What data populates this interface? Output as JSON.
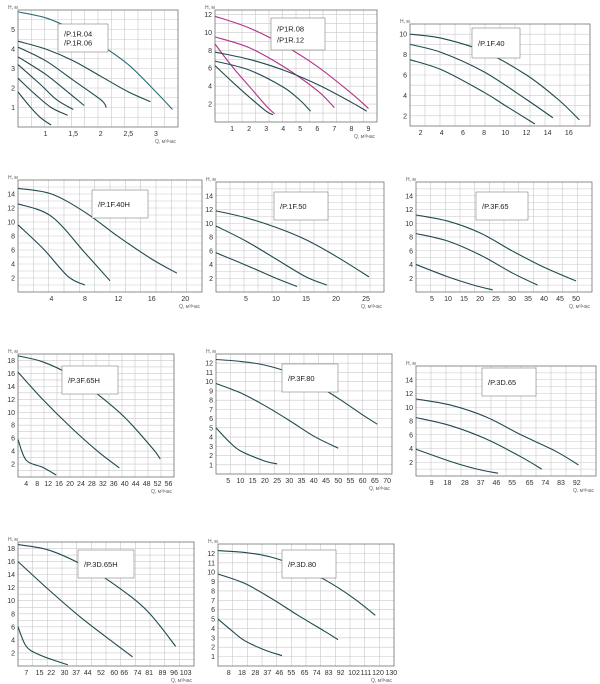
{
  "colors": {
    "curve": "#1f4a4f",
    "magenta": "#b5308a",
    "grid": "#c9c9c9",
    "axis": "#707070"
  },
  "chart_data": [
    {
      "type": "line",
      "ylabel": "H, м",
      "xlabel": "Q, м³/час",
      "xticks": [
        "1",
        "1,5",
        "2",
        "2,5",
        "3"
      ],
      "xtick_values": [
        1,
        1.5,
        2,
        2.5,
        3
      ],
      "xlim": [
        0.5,
        3.4
      ],
      "yticks": [
        "1",
        "2",
        "3",
        "4",
        "5"
      ],
      "ylim": [
        0,
        6
      ],
      "legend": [
        "/P.1R.04",
        "/P.1R.06"
      ],
      "legend_colors": [
        "#202020",
        "#2d6f7a"
      ],
      "series": [
        {
          "x": [
            0.5,
            1.0,
            1.5,
            2.0,
            2.5,
            3.0,
            3.3
          ],
          "y": [
            5.9,
            5.6,
            5.0,
            4.2,
            3.2,
            1.8,
            0.9
          ],
          "color": "#2d6f7a"
        },
        {
          "x": [
            0.5,
            1.0,
            1.5,
            2.0,
            2.5,
            2.9
          ],
          "y": [
            4.4,
            4.0,
            3.4,
            2.6,
            1.8,
            1.3
          ]
        },
        {
          "x": [
            0.5,
            1.0,
            1.5,
            2.0,
            2.1
          ],
          "y": [
            4.1,
            3.4,
            2.4,
            1.4,
            1.0
          ]
        },
        {
          "x": [
            0.5,
            1.0,
            1.4,
            1.7
          ],
          "y": [
            3.6,
            2.7,
            1.8,
            1.1
          ]
        },
        {
          "x": [
            0.5,
            0.9,
            1.2,
            1.5
          ],
          "y": [
            3.2,
            2.2,
            1.4,
            0.9
          ]
        },
        {
          "x": [
            0.5,
            0.8,
            1.1,
            1.4
          ],
          "y": [
            2.5,
            1.7,
            1.0,
            0.6
          ]
        },
        {
          "x": [
            0.5,
            0.7,
            0.9,
            1.1
          ],
          "y": [
            1.8,
            1.1,
            0.5,
            0.1
          ]
        }
      ]
    },
    {
      "type": "line",
      "ylabel": "H, м",
      "xlabel": "Q, м³/час",
      "xticks": [
        "1",
        "2",
        "3",
        "4",
        "5",
        "6",
        "7",
        "8",
        "9"
      ],
      "xtick_values": [
        1,
        2,
        3,
        4,
        5,
        6,
        7,
        8,
        9
      ],
      "xlim": [
        0,
        9.5
      ],
      "yticks": [
        "2",
        "4",
        "6",
        "8",
        "10",
        "12"
      ],
      "ylim": [
        0,
        12.5
      ],
      "legend": [
        "/P1R.08",
        "/P1R.12"
      ],
      "legend_colors": [
        "#3b2f80",
        "#b5308a"
      ],
      "series": [
        {
          "x": [
            0,
            2,
            4,
            6,
            8,
            9
          ],
          "y": [
            11.8,
            10.5,
            8.6,
            6.2,
            3.2,
            1.5
          ],
          "color": "#b5308a"
        },
        {
          "x": [
            0,
            2,
            4,
            6,
            7
          ],
          "y": [
            9.5,
            8.3,
            6.2,
            3.5,
            1.6
          ],
          "color": "#b5308a"
        },
        {
          "x": [
            0,
            1,
            2,
            3,
            3.5
          ],
          "y": [
            8.7,
            6.2,
            4.0,
            1.8,
            0.9
          ],
          "color": "#b5308a"
        },
        {
          "x": [
            0,
            2,
            4,
            6,
            8,
            8.9
          ],
          "y": [
            7.8,
            7.0,
            5.8,
            4.2,
            2.2,
            1.2
          ]
        },
        {
          "x": [
            0,
            2,
            4,
            5,
            5.6
          ],
          "y": [
            6.8,
            5.8,
            3.9,
            2.4,
            1.2
          ]
        },
        {
          "x": [
            0,
            1,
            2,
            3,
            3.4
          ],
          "y": [
            6.3,
            4.5,
            2.8,
            1.2,
            0.8
          ]
        }
      ]
    },
    {
      "type": "line",
      "ylabel": "H, м",
      "xlabel": "",
      "xticks": [
        "2",
        "4",
        "6",
        "8",
        "10",
        "12",
        "14",
        "16"
      ],
      "xtick_values": [
        2,
        4,
        6,
        8,
        10,
        12,
        14,
        16
      ],
      "xlim": [
        1,
        18
      ],
      "yticks": [
        "2",
        "4",
        "6",
        "8",
        "10"
      ],
      "ylim": [
        1,
        11
      ],
      "legend": [
        "/P.1F.40"
      ],
      "legend_colors": [
        "#202020"
      ],
      "series": [
        {
          "x": [
            1,
            4,
            8,
            12,
            15,
            17
          ],
          "y": [
            10,
            9.6,
            8.3,
            6.0,
            3.6,
            1.6
          ]
        },
        {
          "x": [
            1,
            4,
            8,
            12,
            14.5
          ],
          "y": [
            9,
            8.2,
            6.3,
            3.6,
            1.8
          ]
        },
        {
          "x": [
            1,
            4,
            8,
            10,
            12.8
          ],
          "y": [
            7.5,
            6.5,
            4.3,
            3.0,
            1.2
          ]
        }
      ]
    },
    {
      "type": "line",
      "ylabel": "H, м",
      "xlabel": "Q, м³/час",
      "xticks": [
        "4",
        "8",
        "12",
        "16",
        "20"
      ],
      "xtick_values": [
        4,
        8,
        12,
        16,
        20
      ],
      "xlim": [
        0,
        22
      ],
      "yticks": [
        "2",
        "4",
        "6",
        "8",
        "10",
        "12",
        "14"
      ],
      "ylim": [
        0,
        16
      ],
      "legend": [
        "/P.1F.40H"
      ],
      "legend_colors": [
        "#202020"
      ],
      "series": [
        {
          "x": [
            0,
            4,
            8,
            12,
            16,
            19
          ],
          "y": [
            14.8,
            14.0,
            11.4,
            7.9,
            4.7,
            2.7
          ]
        },
        {
          "x": [
            0,
            4,
            8,
            11
          ],
          "y": [
            12.6,
            10.8,
            5.6,
            1.6
          ]
        },
        {
          "x": [
            0,
            3,
            6,
            8
          ],
          "y": [
            9.6,
            6.2,
            2.2,
            1.0
          ]
        }
      ]
    },
    {
      "type": "line",
      "ylabel": "H, м",
      "xlabel": "Q, м³/час",
      "xticks": [
        "5",
        "10",
        "15",
        "20",
        "25"
      ],
      "xtick_values": [
        5,
        10,
        15,
        20,
        25
      ],
      "xlim": [
        0,
        28
      ],
      "yticks": [
        "2",
        "4",
        "6",
        "8",
        "10",
        "12",
        "14"
      ],
      "ylim": [
        0,
        16
      ],
      "legend": [
        "/P.1F.50"
      ],
      "legend_colors": [
        "#202020"
      ],
      "series": [
        {
          "x": [
            0,
            5,
            10,
            15,
            20,
            25.5
          ],
          "y": [
            11.8,
            10.8,
            9.4,
            7.6,
            5.2,
            2.2
          ]
        },
        {
          "x": [
            0,
            5,
            10,
            15,
            18.5
          ],
          "y": [
            9.6,
            7.4,
            4.8,
            2.2,
            1.0
          ]
        },
        {
          "x": [
            0,
            5,
            10,
            13.5
          ],
          "y": [
            5.7,
            3.9,
            2.0,
            0.8
          ]
        }
      ]
    },
    {
      "type": "line",
      "ylabel": "H, м",
      "xlabel": "Q, м³/час",
      "xticks": [
        "5",
        "10",
        "15",
        "20",
        "25",
        "30",
        "35",
        "40",
        "45",
        "50"
      ],
      "xtick_values": [
        5,
        10,
        15,
        20,
        25,
        30,
        35,
        40,
        45,
        50
      ],
      "xlim": [
        0,
        55
      ],
      "yticks": [
        "2",
        "4",
        "6",
        "8",
        "10",
        "12",
        "14"
      ],
      "ylim": [
        0,
        16
      ],
      "legend": [
        "/P.3F.65"
      ],
      "legend_colors": [
        "#202020"
      ],
      "series": [
        {
          "x": [
            0,
            10,
            20,
            30,
            40,
            50
          ],
          "y": [
            11.2,
            10.3,
            8.6,
            6.0,
            3.6,
            1.6
          ]
        },
        {
          "x": [
            0,
            10,
            20,
            30,
            38
          ],
          "y": [
            8.5,
            7.4,
            5.4,
            2.8,
            1.0
          ]
        },
        {
          "x": [
            0,
            10,
            18,
            24
          ],
          "y": [
            4.0,
            2.2,
            1.0,
            0.3
          ]
        }
      ]
    },
    {
      "type": "line",
      "ylabel": "H, м",
      "xlabel": "Q, м³/час",
      "xticks": [
        "4",
        "8",
        "12",
        "16",
        "20",
        "24",
        "28",
        "32",
        "36",
        "40",
        "44",
        "48",
        "52",
        "56"
      ],
      "xtick_values": [
        4,
        8,
        12,
        16,
        20,
        24,
        28,
        32,
        36,
        40,
        44,
        48,
        52,
        56
      ],
      "xlim": [
        1,
        58
      ],
      "yticks": [
        "2",
        "4",
        "6",
        "8",
        "10",
        "12",
        "14",
        "16",
        "18"
      ],
      "ylim": [
        0,
        19
      ],
      "legend": [
        "/P.3F.65H"
      ],
      "legend_colors": [
        "#202020"
      ],
      "series": [
        {
          "x": [
            1,
            10,
            20,
            30,
            40,
            50,
            53
          ],
          "y": [
            18.7,
            17.8,
            15.8,
            12.8,
            9.2,
            4.5,
            2.8
          ]
        },
        {
          "x": [
            1,
            10,
            20,
            30,
            38
          ],
          "y": [
            16.2,
            12.0,
            7.8,
            4.0,
            1.4
          ]
        },
        {
          "x": [
            1,
            4,
            10,
            15
          ],
          "y": [
            5.8,
            2.6,
            1.5,
            0.3
          ]
        }
      ]
    },
    {
      "type": "line",
      "ylabel": "H, м",
      "xlabel": "Q, м³/час",
      "xticks": [
        "5",
        "10",
        "15",
        "20",
        "25",
        "30",
        "35",
        "40",
        "45",
        "50",
        "55",
        "60",
        "65",
        "70"
      ],
      "xtick_values": [
        5,
        10,
        15,
        20,
        25,
        30,
        35,
        40,
        45,
        50,
        55,
        60,
        65,
        70
      ],
      "xlim": [
        0,
        72
      ],
      "yticks": [
        "1",
        "2",
        "3",
        "4",
        "5",
        "6",
        "7",
        "8",
        "9",
        "10",
        "11",
        "12"
      ],
      "ylim": [
        0,
        13
      ],
      "legend": [
        "/P.3F.80"
      ],
      "legend_colors": [
        "#202020"
      ],
      "series": [
        {
          "x": [
            0,
            10,
            20,
            30,
            40,
            50,
            60,
            66
          ],
          "y": [
            12.4,
            12.2,
            11.8,
            11.0,
            9.8,
            8.2,
            6.4,
            5.4
          ]
        },
        {
          "x": [
            0,
            10,
            20,
            30,
            40,
            50
          ],
          "y": [
            9.8,
            8.8,
            7.4,
            5.8,
            4.1,
            2.8
          ]
        },
        {
          "x": [
            0,
            5,
            10,
            20,
            25
          ],
          "y": [
            5.0,
            3.6,
            2.5,
            1.4,
            1.1
          ]
        }
      ]
    },
    {
      "type": "line",
      "ylabel": "H, м",
      "xlabel": "Q, м³/час",
      "xticks": [
        "9",
        "18",
        "28",
        "37",
        "46",
        "55",
        "65",
        "74",
        "83",
        "92"
      ],
      "xtick_values": [
        9,
        18,
        28,
        37,
        46,
        55,
        65,
        74,
        83,
        92
      ],
      "xlim": [
        0,
        103
      ],
      "yticks": [
        "2",
        "4",
        "6",
        "8",
        "10",
        "12",
        "14"
      ],
      "ylim": [
        0,
        16
      ],
      "legend": [
        "/P.3D.65"
      ],
      "legend_colors": [
        "#202020"
      ],
      "series": [
        {
          "x": [
            0,
            20,
            40,
            60,
            80,
            93
          ],
          "y": [
            11.2,
            10.3,
            8.6,
            6.0,
            3.6,
            1.6
          ]
        },
        {
          "x": [
            0,
            20,
            40,
            60,
            72
          ],
          "y": [
            8.5,
            7.3,
            5.4,
            2.8,
            1.0
          ]
        },
        {
          "x": [
            0,
            20,
            35,
            47
          ],
          "y": [
            3.9,
            2.1,
            1.0,
            0.4
          ]
        }
      ]
    },
    {
      "type": "line",
      "ylabel": "H, м",
      "xlabel": "Q, м³/час",
      "xticks": [
        "7",
        "15",
        "22",
        "30",
        "37",
        "44",
        "52",
        "60",
        "66",
        "74",
        "81",
        "89",
        "96",
        "103"
      ],
      "xtick_values": [
        7,
        15,
        22,
        30,
        37,
        44,
        52,
        60,
        66,
        74,
        81,
        89,
        96,
        103
      ],
      "xlim": [
        2,
        108
      ],
      "yticks": [
        "2",
        "4",
        "6",
        "8",
        "10",
        "12",
        "14",
        "16",
        "18"
      ],
      "ylim": [
        0,
        19
      ],
      "legend": [
        "/P.3D.65H"
      ],
      "legend_colors": [
        "#202020"
      ],
      "series": [
        {
          "x": [
            2,
            20,
            40,
            60,
            80,
            97
          ],
          "y": [
            18.6,
            17.8,
            15.6,
            12.5,
            8.4,
            3.0
          ]
        },
        {
          "x": [
            2,
            20,
            40,
            60,
            71
          ],
          "y": [
            16.0,
            11.8,
            7.4,
            3.5,
            1.4
          ]
        },
        {
          "x": [
            2,
            7,
            15,
            27,
            32
          ],
          "y": [
            6.0,
            3.0,
            1.7,
            0.6,
            0.2
          ]
        }
      ]
    },
    {
      "type": "line",
      "ylabel": "H, м",
      "xlabel": "Q, м³/час",
      "xticks": [
        "8",
        "18",
        "28",
        "37",
        "46",
        "55",
        "65",
        "74",
        "83",
        "92",
        "102",
        "111",
        "120",
        "130"
      ],
      "xtick_values": [
        8,
        18,
        28,
        37,
        46,
        55,
        65,
        74,
        83,
        92,
        102,
        111,
        120,
        130
      ],
      "xlim": [
        0,
        132
      ],
      "yticks": [
        "1",
        "2",
        "3",
        "4",
        "5",
        "6",
        "7",
        "8",
        "9",
        "10",
        "11",
        "12"
      ],
      "ylim": [
        0,
        13
      ],
      "legend": [
        "/P.3D.80"
      ],
      "legend_colors": [
        "#202020"
      ],
      "series": [
        {
          "x": [
            0,
            20,
            40,
            60,
            80,
            100,
            118
          ],
          "y": [
            12.3,
            12.1,
            11.6,
            10.6,
            9.2,
            7.4,
            5.4
          ]
        },
        {
          "x": [
            0,
            20,
            40,
            60,
            80,
            90
          ],
          "y": [
            9.8,
            8.8,
            7.2,
            5.4,
            3.7,
            2.8
          ]
        },
        {
          "x": [
            0,
            10,
            20,
            35,
            48
          ],
          "y": [
            5.0,
            3.8,
            2.7,
            1.7,
            1.1
          ]
        }
      ]
    }
  ]
}
